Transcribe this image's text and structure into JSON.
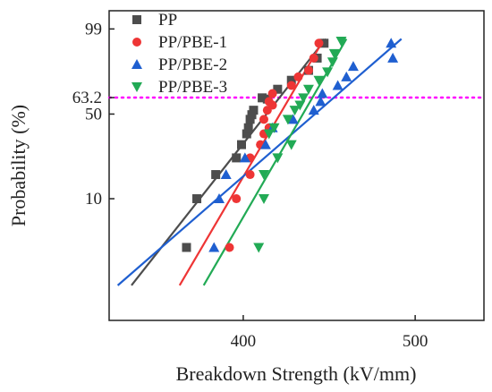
{
  "chart_data": {
    "type": "scatter",
    "xlabel": "Breakdown Strength (kV/mm)",
    "ylabel": "Probability (%)",
    "xlim": [
      322,
      540
    ],
    "x_ticks": [
      400,
      500
    ],
    "y_ticks": [
      {
        "label": "10",
        "value": 10
      },
      {
        "label": "50",
        "value": 50
      },
      {
        "label": "63.2",
        "value": 63.2
      },
      {
        "label": "99",
        "value": 99
      }
    ],
    "y_scale": "weibull",
    "ylim": [
      0.7,
      99.9
    ],
    "reference_line": {
      "value": 63.2,
      "color": "#ff00ff",
      "style": "dotted"
    },
    "legend": {
      "position": "top-left"
    },
    "series": [
      {
        "name": "PP",
        "marker": "square",
        "color": "#4d4d4d",
        "points": [
          {
            "x": 367,
            "y": 3.5
          },
          {
            "x": 373,
            "y": 10
          },
          {
            "x": 384,
            "y": 16.5
          },
          {
            "x": 396,
            "y": 23
          },
          {
            "x": 399,
            "y": 29.6
          },
          {
            "x": 402,
            "y": 36
          },
          {
            "x": 403,
            "y": 40
          },
          {
            "x": 404,
            "y": 46
          },
          {
            "x": 405,
            "y": 49.5
          },
          {
            "x": 406,
            "y": 53
          },
          {
            "x": 411,
            "y": 63
          },
          {
            "x": 414,
            "y": 62
          },
          {
            "x": 420,
            "y": 70
          },
          {
            "x": 428,
            "y": 77
          },
          {
            "x": 438,
            "y": 84
          },
          {
            "x": 443,
            "y": 91
          },
          {
            "x": 447,
            "y": 96.5
          }
        ],
        "fit_line": {
          "x": [
            335,
            448
          ],
          "y": [
            1.52,
            97.5
          ]
        }
      },
      {
        "name": "PP/PBE-1",
        "marker": "circle",
        "color": "#ee3535",
        "points": [
          {
            "x": 392,
            "y": 3.5
          },
          {
            "x": 396,
            "y": 10
          },
          {
            "x": 404,
            "y": 16.5
          },
          {
            "x": 404,
            "y": 23
          },
          {
            "x": 410,
            "y": 29.6
          },
          {
            "x": 412,
            "y": 36
          },
          {
            "x": 415,
            "y": 40
          },
          {
            "x": 412,
            "y": 46
          },
          {
            "x": 414,
            "y": 53
          },
          {
            "x": 417,
            "y": 57
          },
          {
            "x": 415,
            "y": 60
          },
          {
            "x": 417,
            "y": 66.5
          },
          {
            "x": 428,
            "y": 73
          },
          {
            "x": 432,
            "y": 79.5
          },
          {
            "x": 438,
            "y": 84
          },
          {
            "x": 441,
            "y": 91
          },
          {
            "x": 444,
            "y": 96.5
          }
        ],
        "fit_line": {
          "x": [
            363,
            447
          ],
          "y": [
            1.52,
            97.5
          ]
        }
      },
      {
        "name": "PP/PBE-2",
        "marker": "triangle-up",
        "color": "#1f5fd0",
        "points": [
          {
            "x": 383,
            "y": 3.5
          },
          {
            "x": 386,
            "y": 10
          },
          {
            "x": 390,
            "y": 16.5
          },
          {
            "x": 401,
            "y": 23
          },
          {
            "x": 413,
            "y": 29.6
          },
          {
            "x": 417,
            "y": 40
          },
          {
            "x": 429,
            "y": 46
          },
          {
            "x": 441,
            "y": 53
          },
          {
            "x": 445,
            "y": 60
          },
          {
            "x": 446,
            "y": 66.5
          },
          {
            "x": 455,
            "y": 73
          },
          {
            "x": 460,
            "y": 79.5
          },
          {
            "x": 464,
            "y": 86.5
          },
          {
            "x": 487,
            "y": 91
          },
          {
            "x": 486,
            "y": 96.5
          }
        ],
        "fit_line": {
          "x": [
            327,
            492
          ],
          "y": [
            1.52,
            97.5
          ]
        }
      },
      {
        "name": "PP/PBE-3",
        "marker": "triangle-down",
        "color": "#22aa55",
        "points": [
          {
            "x": 409,
            "y": 3.5
          },
          {
            "x": 412,
            "y": 10
          },
          {
            "x": 412,
            "y": 16.5
          },
          {
            "x": 420,
            "y": 23
          },
          {
            "x": 428,
            "y": 29.6
          },
          {
            "x": 415,
            "y": 36
          },
          {
            "x": 418,
            "y": 40
          },
          {
            "x": 426,
            "y": 46
          },
          {
            "x": 430,
            "y": 53
          },
          {
            "x": 433,
            "y": 57
          },
          {
            "x": 435,
            "y": 63
          },
          {
            "x": 438,
            "y": 70
          },
          {
            "x": 444,
            "y": 77
          },
          {
            "x": 449,
            "y": 83
          },
          {
            "x": 452,
            "y": 89
          },
          {
            "x": 453,
            "y": 93
          },
          {
            "x": 457,
            "y": 97
          }
        ],
        "fit_line": {
          "x": [
            377,
            460
          ],
          "y": [
            1.52,
            97.5
          ]
        }
      }
    ]
  }
}
